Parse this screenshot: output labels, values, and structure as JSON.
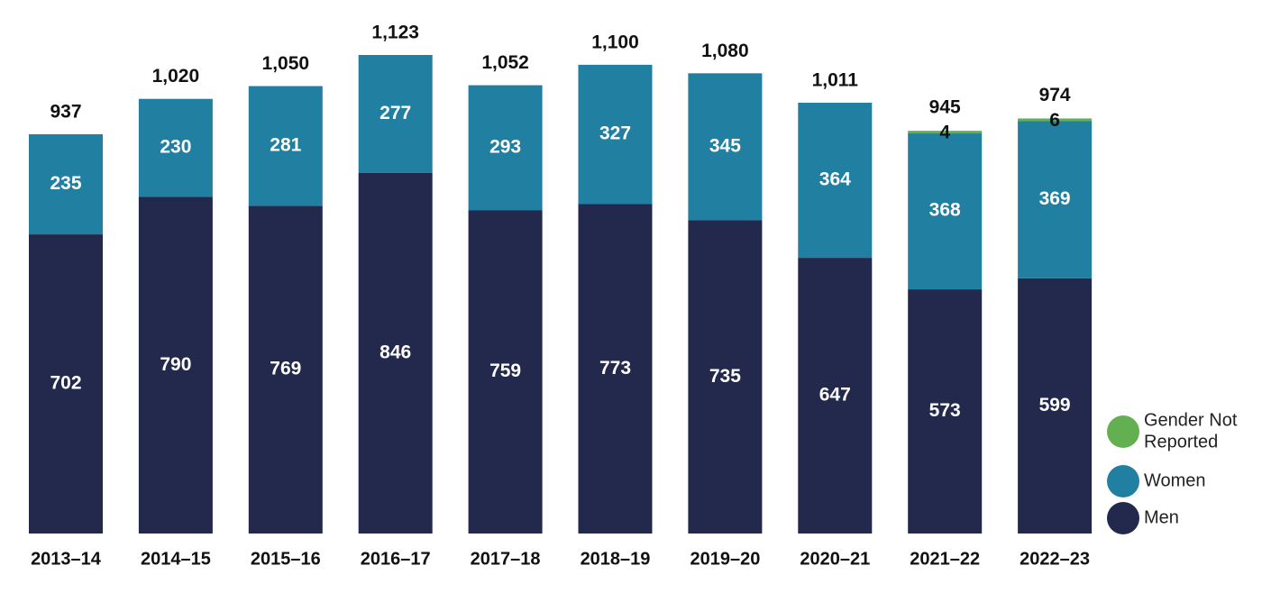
{
  "chart_data": {
    "type": "bar",
    "stacked": true,
    "title": "",
    "xlabel": "",
    "ylabel": "",
    "categories": [
      "2013–14",
      "2014–15",
      "2015–16",
      "2016–17",
      "2017–18",
      "2018–19",
      "2019–20",
      "2020–21",
      "2021–22",
      "2022–23"
    ],
    "series": [
      {
        "name": "Men",
        "color": "#23294d",
        "values": [
          702,
          790,
          769,
          846,
          759,
          773,
          735,
          647,
          573,
          599
        ]
      },
      {
        "name": "Women",
        "color": "#2180a2",
        "values": [
          235,
          230,
          281,
          277,
          293,
          327,
          345,
          364,
          368,
          369
        ]
      },
      {
        "name": "Gender Not Reported",
        "color": "#62b04f",
        "values": [
          0,
          0,
          0,
          0,
          0,
          0,
          0,
          0,
          4,
          6
        ]
      }
    ],
    "totals": [
      "937",
      "1,020",
      "1,050",
      "1,123",
      "1,052",
      "1,100",
      "1,080",
      "1,011",
      "945",
      "974"
    ],
    "ylim": [
      0,
      1123
    ],
    "grid": false,
    "legend": {
      "placement": "bottom-right",
      "entries": [
        {
          "label_lines": [
            "Gender Not",
            "Reported"
          ],
          "color": "#62b04f"
        },
        {
          "label_lines": [
            "Women"
          ],
          "color": "#2180a2"
        },
        {
          "label_lines": [
            "Men"
          ],
          "color": "#23294d"
        }
      ]
    }
  }
}
